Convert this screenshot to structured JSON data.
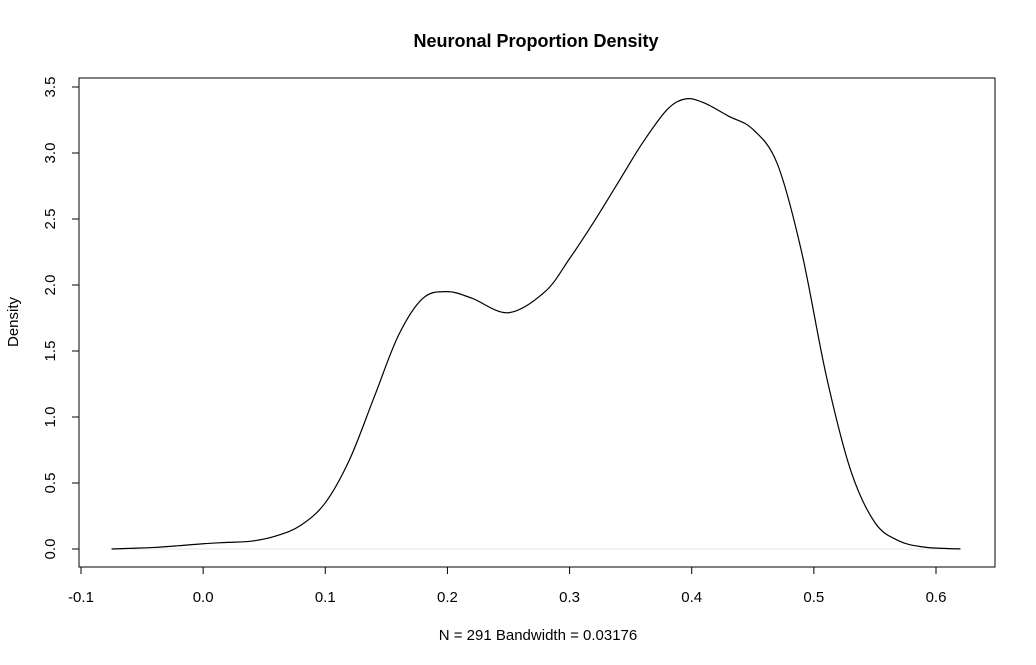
{
  "chart_data": {
    "type": "line",
    "title": "Neuronal Proportion Density",
    "xlabel": "N = 291   Bandwidth = 0.03176",
    "ylabel": "Density",
    "xlim": [
      -0.1,
      0.65
    ],
    "ylim": [
      -0.12,
      3.55
    ],
    "x_ticks": [
      "-0.1",
      "0.0",
      "0.1",
      "0.2",
      "0.3",
      "0.4",
      "0.5",
      "0.6"
    ],
    "y_ticks": [
      "0.0",
      "0.5",
      "1.0",
      "1.5",
      "2.0",
      "2.5",
      "3.0",
      "3.5"
    ],
    "grid": false,
    "baseline": 0,
    "baseline_color": "#e6e6e6",
    "line_color": "#000000",
    "series": [
      {
        "x": [
          -0.075,
          -0.06,
          -0.04,
          -0.02,
          0.0,
          0.02,
          0.04,
          0.06,
          0.08,
          0.1,
          0.12,
          0.14,
          0.16,
          0.18,
          0.2,
          0.22,
          0.25,
          0.28,
          0.3,
          0.32,
          0.34,
          0.36,
          0.38,
          0.395,
          0.41,
          0.43,
          0.45,
          0.47,
          0.49,
          0.51,
          0.53,
          0.55,
          0.57,
          0.59,
          0.61,
          0.62
        ],
        "y": [
          0.0,
          0.005,
          0.012,
          0.025,
          0.04,
          0.05,
          0.06,
          0.1,
          0.18,
          0.35,
          0.68,
          1.15,
          1.62,
          1.9,
          1.95,
          1.9,
          1.79,
          1.95,
          2.2,
          2.48,
          2.78,
          3.08,
          3.33,
          3.41,
          3.38,
          3.28,
          3.18,
          2.92,
          2.25,
          1.32,
          0.6,
          0.2,
          0.06,
          0.015,
          0.003,
          0.001
        ]
      }
    ]
  }
}
